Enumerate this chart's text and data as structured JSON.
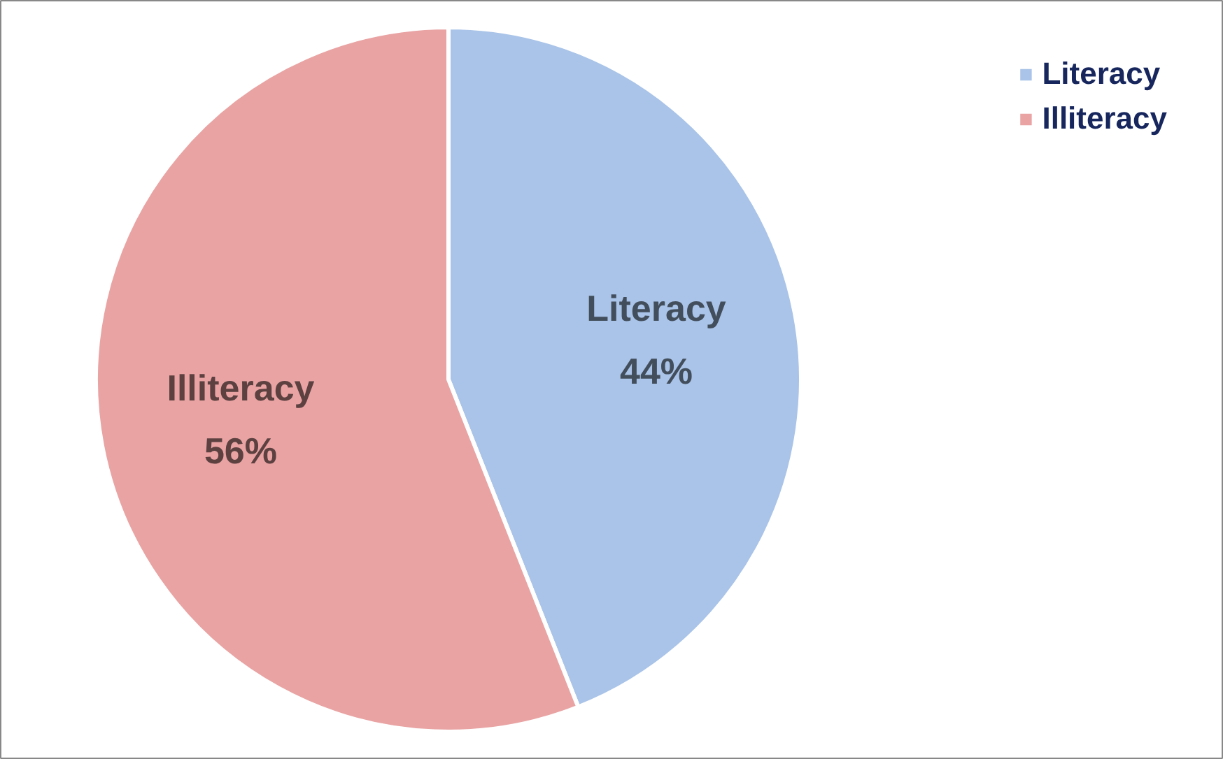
{
  "chart_data": {
    "type": "pie",
    "categories": [
      "Literacy",
      "Illiteracy"
    ],
    "values": [
      44,
      56
    ],
    "colors": [
      "#a9c4e8",
      "#e9a3a3"
    ],
    "value_labels": [
      "44%",
      "56%"
    ],
    "legend": "top right"
  }
}
